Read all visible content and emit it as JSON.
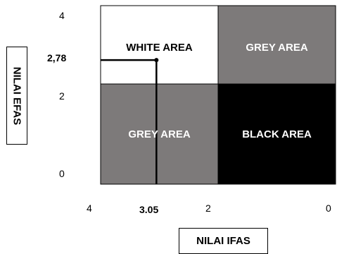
{
  "y_axis": {
    "label": "NILAI EFAS",
    "ticks": {
      "top": "4",
      "middle": "2",
      "bottom": "0"
    },
    "marker_label": "2,78"
  },
  "x_axis": {
    "label": "NILAI IFAS",
    "ticks": {
      "left": "4",
      "middle": "2",
      "right": "0"
    },
    "marker_label": "3.05"
  },
  "quadrants": {
    "top_left": {
      "label": "WHITE AREA",
      "fill": "#ffffff",
      "text_color": "#000000"
    },
    "top_right": {
      "label": "GREY AREA",
      "fill": "#7d7a7a",
      "text_color": "#ffffff"
    },
    "bottom_left": {
      "label": "GREY AREA",
      "fill": "#7d7a7a",
      "text_color": "#ffffff"
    },
    "bottom_right": {
      "label": "BLACK AREA",
      "fill": "#000000",
      "text_color": "#ffffff"
    }
  },
  "point": {
    "ifas": 3.05,
    "efas": 2.78
  }
}
